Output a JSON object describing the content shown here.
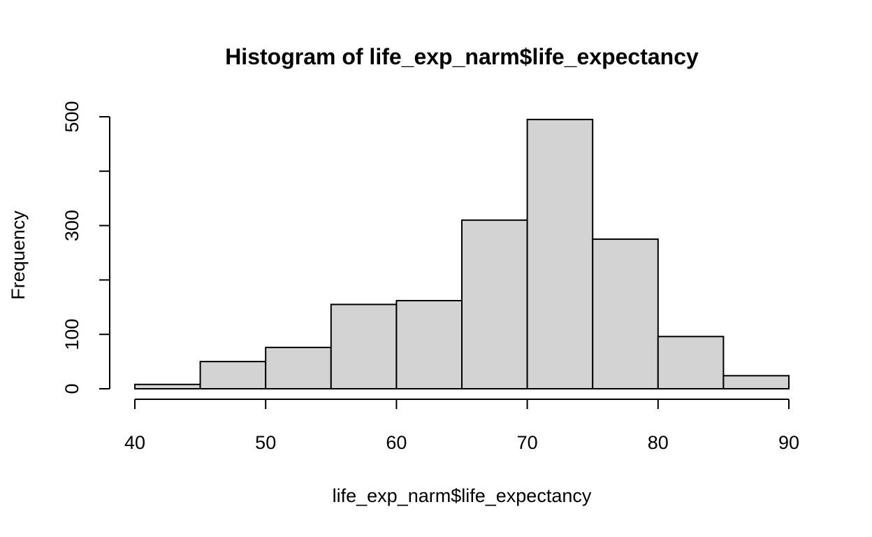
{
  "chart_data": {
    "type": "bar",
    "title": "Histogram of life_exp_narm$life_expectancy",
    "xlabel": "life_exp_narm$life_expectancy",
    "ylabel": "Frequency",
    "bins": [
      {
        "from": 40,
        "to": 45,
        "count": 8
      },
      {
        "from": 45,
        "to": 50,
        "count": 50
      },
      {
        "from": 50,
        "to": 55,
        "count": 76
      },
      {
        "from": 55,
        "to": 60,
        "count": 155
      },
      {
        "from": 60,
        "to": 65,
        "count": 162
      },
      {
        "from": 65,
        "to": 70,
        "count": 310
      },
      {
        "from": 70,
        "to": 75,
        "count": 495
      },
      {
        "from": 75,
        "to": 80,
        "count": 275
      },
      {
        "from": 80,
        "to": 85,
        "count": 96
      },
      {
        "from": 85,
        "to": 90,
        "count": 24
      }
    ],
    "xlim": [
      40,
      90
    ],
    "ylim": [
      0,
      500
    ],
    "x_ticks": [
      40,
      50,
      60,
      70,
      80,
      90
    ],
    "y_ticks": [
      0,
      100,
      200,
      300,
      400,
      500
    ],
    "y_tick_labels": [
      "0",
      "100",
      "",
      "300",
      "",
      "500"
    ],
    "bar_fill": "#d3d3d3",
    "bar_stroke": "#000000",
    "grid": false,
    "legend": "none"
  }
}
